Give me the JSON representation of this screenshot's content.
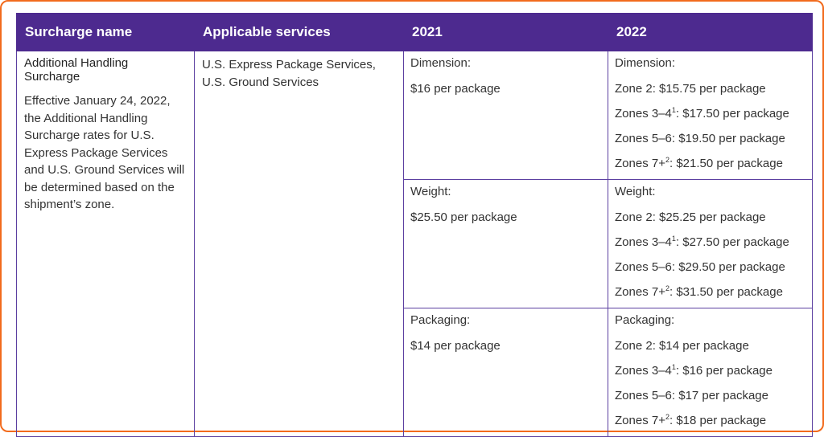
{
  "headers": {
    "surcharge_name": "Surcharge name",
    "applicable_services": "Applicable services",
    "y2021": "2021",
    "y2022": "2022"
  },
  "surcharge": {
    "name": "Additional Handling Surcharge",
    "description": "Effective January 24, 2022, the Additional Handling Surcharge rates for U.S. Express Package Services and U.S. Ground Services will be determined based on the shipment’s zone."
  },
  "services": [
    "U.S. Express Package Services,",
    "U.S. Ground Services"
  ],
  "categories": [
    {
      "label": "Dimension:",
      "rate_2021": "$16 per package",
      "zones_2022": [
        {
          "zone": "Zone 2",
          "sup": "",
          "price": ": $15.75 per package"
        },
        {
          "zone": "Zones 3–4",
          "sup": "1",
          "price": ": $17.50 per package"
        },
        {
          "zone": "Zones 5–6",
          "sup": "",
          "price": ": $19.50 per package"
        },
        {
          "zone": "Zones 7+",
          "sup": "2",
          "price": ": $21.50 per package"
        }
      ]
    },
    {
      "label": "Weight:",
      "rate_2021": "$25.50 per package",
      "zones_2022": [
        {
          "zone": "Zone 2",
          "sup": "",
          "price": ": $25.25 per package"
        },
        {
          "zone": "Zones 3–4",
          "sup": "1",
          "price": ": $27.50 per package"
        },
        {
          "zone": "Zones 5–6",
          "sup": "",
          "price": ": $29.50 per package"
        },
        {
          "zone": "Zones 7+",
          "sup": "2",
          "price": ": $31.50 per package"
        }
      ]
    },
    {
      "label": "Packaging:",
      "rate_2021": "$14 per package",
      "zones_2022": [
        {
          "zone": "Zone 2",
          "sup": "",
          "price": ": $14 per package"
        },
        {
          "zone": "Zones 3–4",
          "sup": "1",
          "price": ": $16 per package"
        },
        {
          "zone": "Zones 5–6",
          "sup": "",
          "price": ": $17 per package"
        },
        {
          "zone": "Zones 7+",
          "sup": "2",
          "price": ": $18 per package"
        }
      ]
    }
  ],
  "colors": {
    "header_bg": "#4d2a8f",
    "border": "#5b3fa0",
    "frame": "#f26b1d"
  }
}
